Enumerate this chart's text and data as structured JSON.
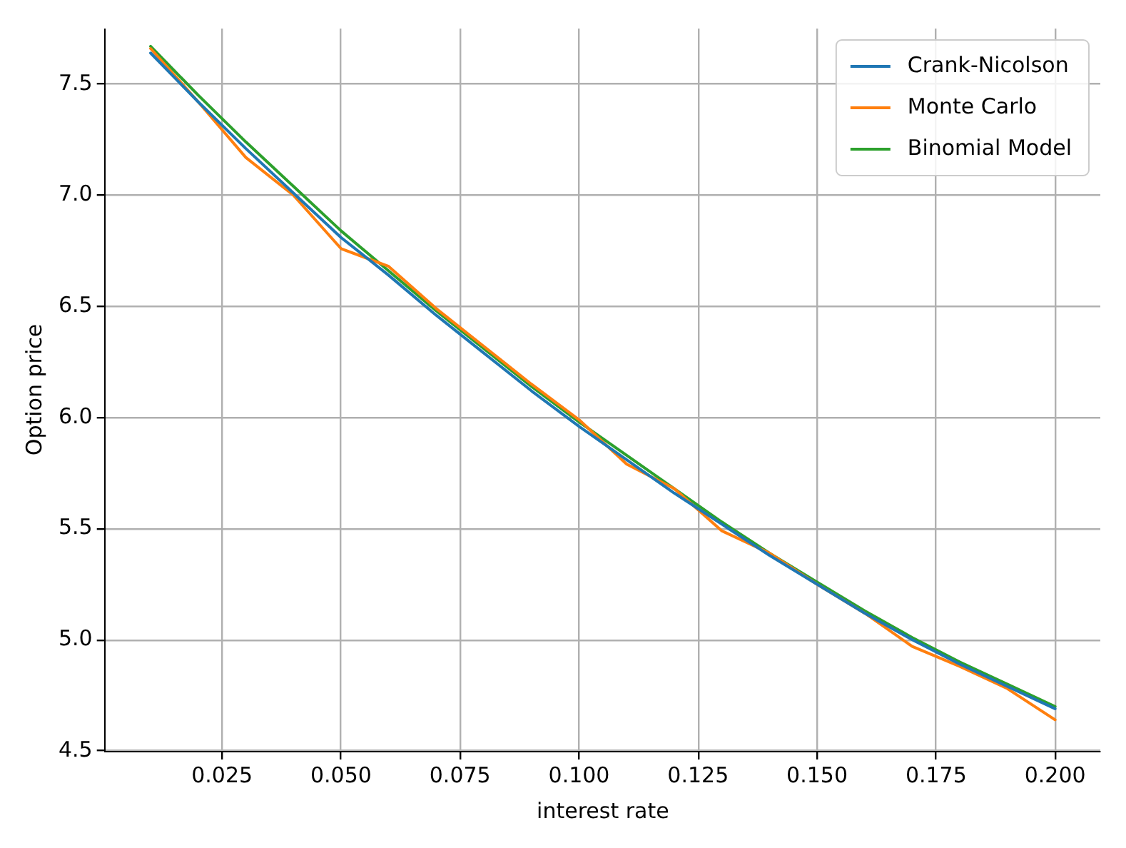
{
  "chart_data": {
    "type": "line",
    "xlabel": "interest rate",
    "ylabel": "Option price",
    "x": [
      0.01,
      0.02,
      0.03,
      0.04,
      0.05,
      0.06,
      0.07,
      0.08,
      0.09,
      0.1,
      0.11,
      0.12,
      0.13,
      0.14,
      0.15,
      0.16,
      0.17,
      0.18,
      0.19,
      0.2
    ],
    "series": [
      {
        "name": "Crank-Nicolson",
        "color": "#1f77b4",
        "values": [
          7.64,
          7.42,
          7.21,
          7.01,
          6.81,
          6.64,
          6.46,
          6.29,
          6.12,
          5.96,
          5.81,
          5.66,
          5.52,
          5.38,
          5.25,
          5.12,
          5.0,
          4.89,
          4.79,
          4.69
        ]
      },
      {
        "name": "Monte Carlo",
        "color": "#ff7f0e",
        "values": [
          7.66,
          7.42,
          7.17,
          7.0,
          6.76,
          6.68,
          6.49,
          6.32,
          6.15,
          5.99,
          5.79,
          5.68,
          5.49,
          5.39,
          5.25,
          5.12,
          4.97,
          4.88,
          4.78,
          4.64
        ]
      },
      {
        "name": "Binomial Model",
        "color": "#2ca02c",
        "values": [
          7.67,
          7.45,
          7.24,
          7.04,
          6.84,
          6.66,
          6.48,
          6.31,
          6.14,
          5.98,
          5.83,
          5.68,
          5.53,
          5.39,
          5.26,
          5.13,
          5.01,
          4.9,
          4.8,
          4.7
        ]
      }
    ],
    "xlim": [
      0.0005,
      0.2095
    ],
    "xticks": [
      {
        "value": 0.025,
        "label": "0.025"
      },
      {
        "value": 0.05,
        "label": "0.050"
      },
      {
        "value": 0.075,
        "label": "0.075"
      },
      {
        "value": 0.1,
        "label": "0.100"
      },
      {
        "value": 0.125,
        "label": "0.125"
      },
      {
        "value": 0.15,
        "label": "0.150"
      },
      {
        "value": 0.175,
        "label": "0.175"
      },
      {
        "value": 0.2,
        "label": "0.200"
      }
    ],
    "ylim": [
      4.5,
      7.75
    ],
    "yticks": [
      {
        "value": 4.5,
        "label": "4.5"
      },
      {
        "value": 5,
        "label": "5.0"
      },
      {
        "value": 5.5,
        "label": "5.5"
      },
      {
        "value": 6,
        "label": "6.0"
      },
      {
        "value": 6.5,
        "label": "6.5"
      },
      {
        "value": 7,
        "label": "7.0"
      },
      {
        "value": 7.5,
        "label": "7.5"
      }
    ],
    "grid": true,
    "legend": "top right",
    "marker": "none",
    "line_style": "solid"
  }
}
